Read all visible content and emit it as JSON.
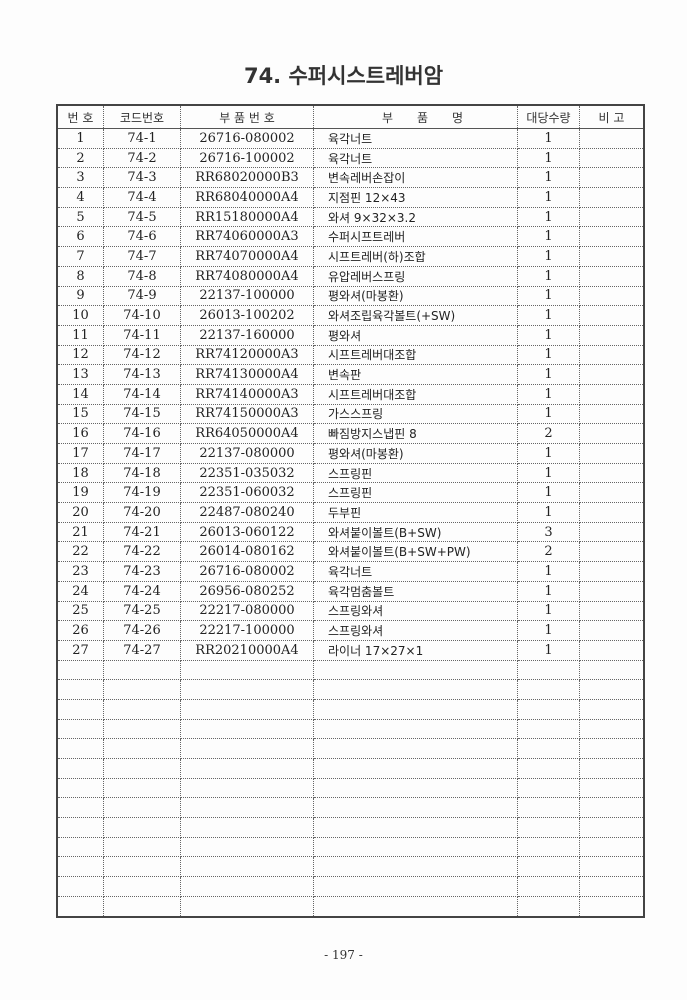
{
  "title": "74. 수퍼시스트레버암",
  "table": {
    "headers": [
      "번 호",
      "코드번호",
      "부 품 번 호",
      "부　　품　　명",
      "대당수량",
      "비 고"
    ],
    "rows": [
      [
        "1",
        "74-1",
        "26716-080002",
        "육각너트",
        "1",
        ""
      ],
      [
        "2",
        "74-2",
        "26716-100002",
        "육각너트",
        "1",
        ""
      ],
      [
        "3",
        "74-3",
        "RR68020000B3",
        "변속레버손잡이",
        "1",
        ""
      ],
      [
        "4",
        "74-4",
        "RR68040000A4",
        "지점핀 12×43",
        "1",
        ""
      ],
      [
        "5",
        "74-5",
        "RR15180000A4",
        "와셔 9×32×3.2",
        "1",
        ""
      ],
      [
        "6",
        "74-6",
        "RR74060000A3",
        "수퍼시프트레버",
        "1",
        ""
      ],
      [
        "7",
        "74-7",
        "RR74070000A4",
        "시프트레버(하)조합",
        "1",
        ""
      ],
      [
        "8",
        "74-8",
        "RR74080000A4",
        "유압레버스프링",
        "1",
        ""
      ],
      [
        "9",
        "74-9",
        "22137-100000",
        "평와셔(마봉환)",
        "1",
        ""
      ],
      [
        "10",
        "74-10",
        "26013-100202",
        "와셔조립육각볼트(+SW)",
        "1",
        ""
      ],
      [
        "11",
        "74-11",
        "22137-160000",
        "평와셔",
        "1",
        ""
      ],
      [
        "12",
        "74-12",
        "RR74120000A3",
        "시프트레버대조합",
        "1",
        ""
      ],
      [
        "13",
        "74-13",
        "RR74130000A4",
        "변속판",
        "1",
        ""
      ],
      [
        "14",
        "74-14",
        "RR74140000A3",
        "시프트레버대조합",
        "1",
        ""
      ],
      [
        "15",
        "74-15",
        "RR74150000A3",
        "가스스프링",
        "1",
        ""
      ],
      [
        "16",
        "74-16",
        "RR64050000A4",
        "빠짐방지스냅핀 8",
        "2",
        ""
      ],
      [
        "17",
        "74-17",
        "22137-080000",
        "평와셔(마봉환)",
        "1",
        ""
      ],
      [
        "18",
        "74-18",
        "22351-035032",
        "스프링핀",
        "1",
        ""
      ],
      [
        "19",
        "74-19",
        "22351-060032",
        "스프링핀",
        "1",
        ""
      ],
      [
        "20",
        "74-20",
        "22487-080240",
        "두부핀",
        "1",
        ""
      ],
      [
        "21",
        "74-21",
        "26013-060122",
        "와셔붙이볼트(B+SW)",
        "3",
        ""
      ],
      [
        "22",
        "74-22",
        "26014-080162",
        "와셔붙이볼트(B+SW+PW)",
        "2",
        ""
      ],
      [
        "23",
        "74-23",
        "26716-080002",
        "육각너트",
        "1",
        ""
      ],
      [
        "24",
        "74-24",
        "26956-080252",
        "육각멈춤볼트",
        "1",
        ""
      ],
      [
        "25",
        "74-25",
        "22217-080000",
        "스프링와셔",
        "1",
        ""
      ],
      [
        "26",
        "74-26",
        "22217-100000",
        "스프링와셔",
        "1",
        ""
      ],
      [
        "27",
        "74-27",
        "RR20210000A4",
        "라이너 17×27×1",
        "1",
        ""
      ]
    ]
  },
  "page_number": "- 197 -"
}
